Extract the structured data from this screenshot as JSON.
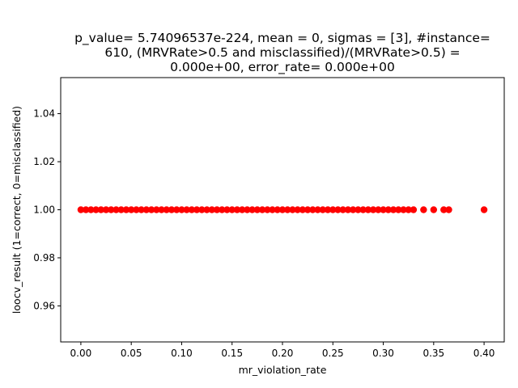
{
  "chart_data": {
    "type": "scatter",
    "title_lines": [
      "p_value= 5.74096537e-224, mean = 0, sigmas = [3], #instance=",
      "610, (MRVRate>0.5 and misclassified)/(MRVRate>0.5) =",
      "0.000e+00, error_rate= 0.000e+00"
    ],
    "xlabel": "mr_violation_rate",
    "ylabel": "loocv_result (1=correct, 0=misclassified)",
    "xlim": [
      -0.02,
      0.42
    ],
    "ylim": [
      0.945,
      1.055
    ],
    "xticks": [
      0.0,
      0.05,
      0.1,
      0.15,
      0.2,
      0.25,
      0.3,
      0.35,
      0.4
    ],
    "xtick_labels": [
      "0.00",
      "0.05",
      "0.10",
      "0.15",
      "0.20",
      "0.25",
      "0.30",
      "0.35",
      "0.40"
    ],
    "yticks": [
      0.96,
      0.98,
      1.0,
      1.02,
      1.04
    ],
    "ytick_labels": [
      "0.96",
      "0.98",
      "1.00",
      "1.02",
      "1.04"
    ],
    "grid": false,
    "marker_color": "#ff0000",
    "x": [
      0.0,
      0.005,
      0.01,
      0.015,
      0.02,
      0.025,
      0.03,
      0.035,
      0.04,
      0.045,
      0.05,
      0.055,
      0.06,
      0.065,
      0.07,
      0.075,
      0.08,
      0.085,
      0.09,
      0.095,
      0.1,
      0.105,
      0.11,
      0.115,
      0.12,
      0.125,
      0.13,
      0.135,
      0.14,
      0.145,
      0.15,
      0.155,
      0.16,
      0.165,
      0.17,
      0.175,
      0.18,
      0.185,
      0.19,
      0.195,
      0.2,
      0.205,
      0.21,
      0.215,
      0.22,
      0.225,
      0.23,
      0.235,
      0.24,
      0.245,
      0.25,
      0.255,
      0.26,
      0.265,
      0.27,
      0.275,
      0.28,
      0.285,
      0.29,
      0.295,
      0.3,
      0.305,
      0.31,
      0.315,
      0.32,
      0.325,
      0.33,
      0.34,
      0.35,
      0.36,
      0.365,
      0.4
    ],
    "y_value": 1.0
  }
}
